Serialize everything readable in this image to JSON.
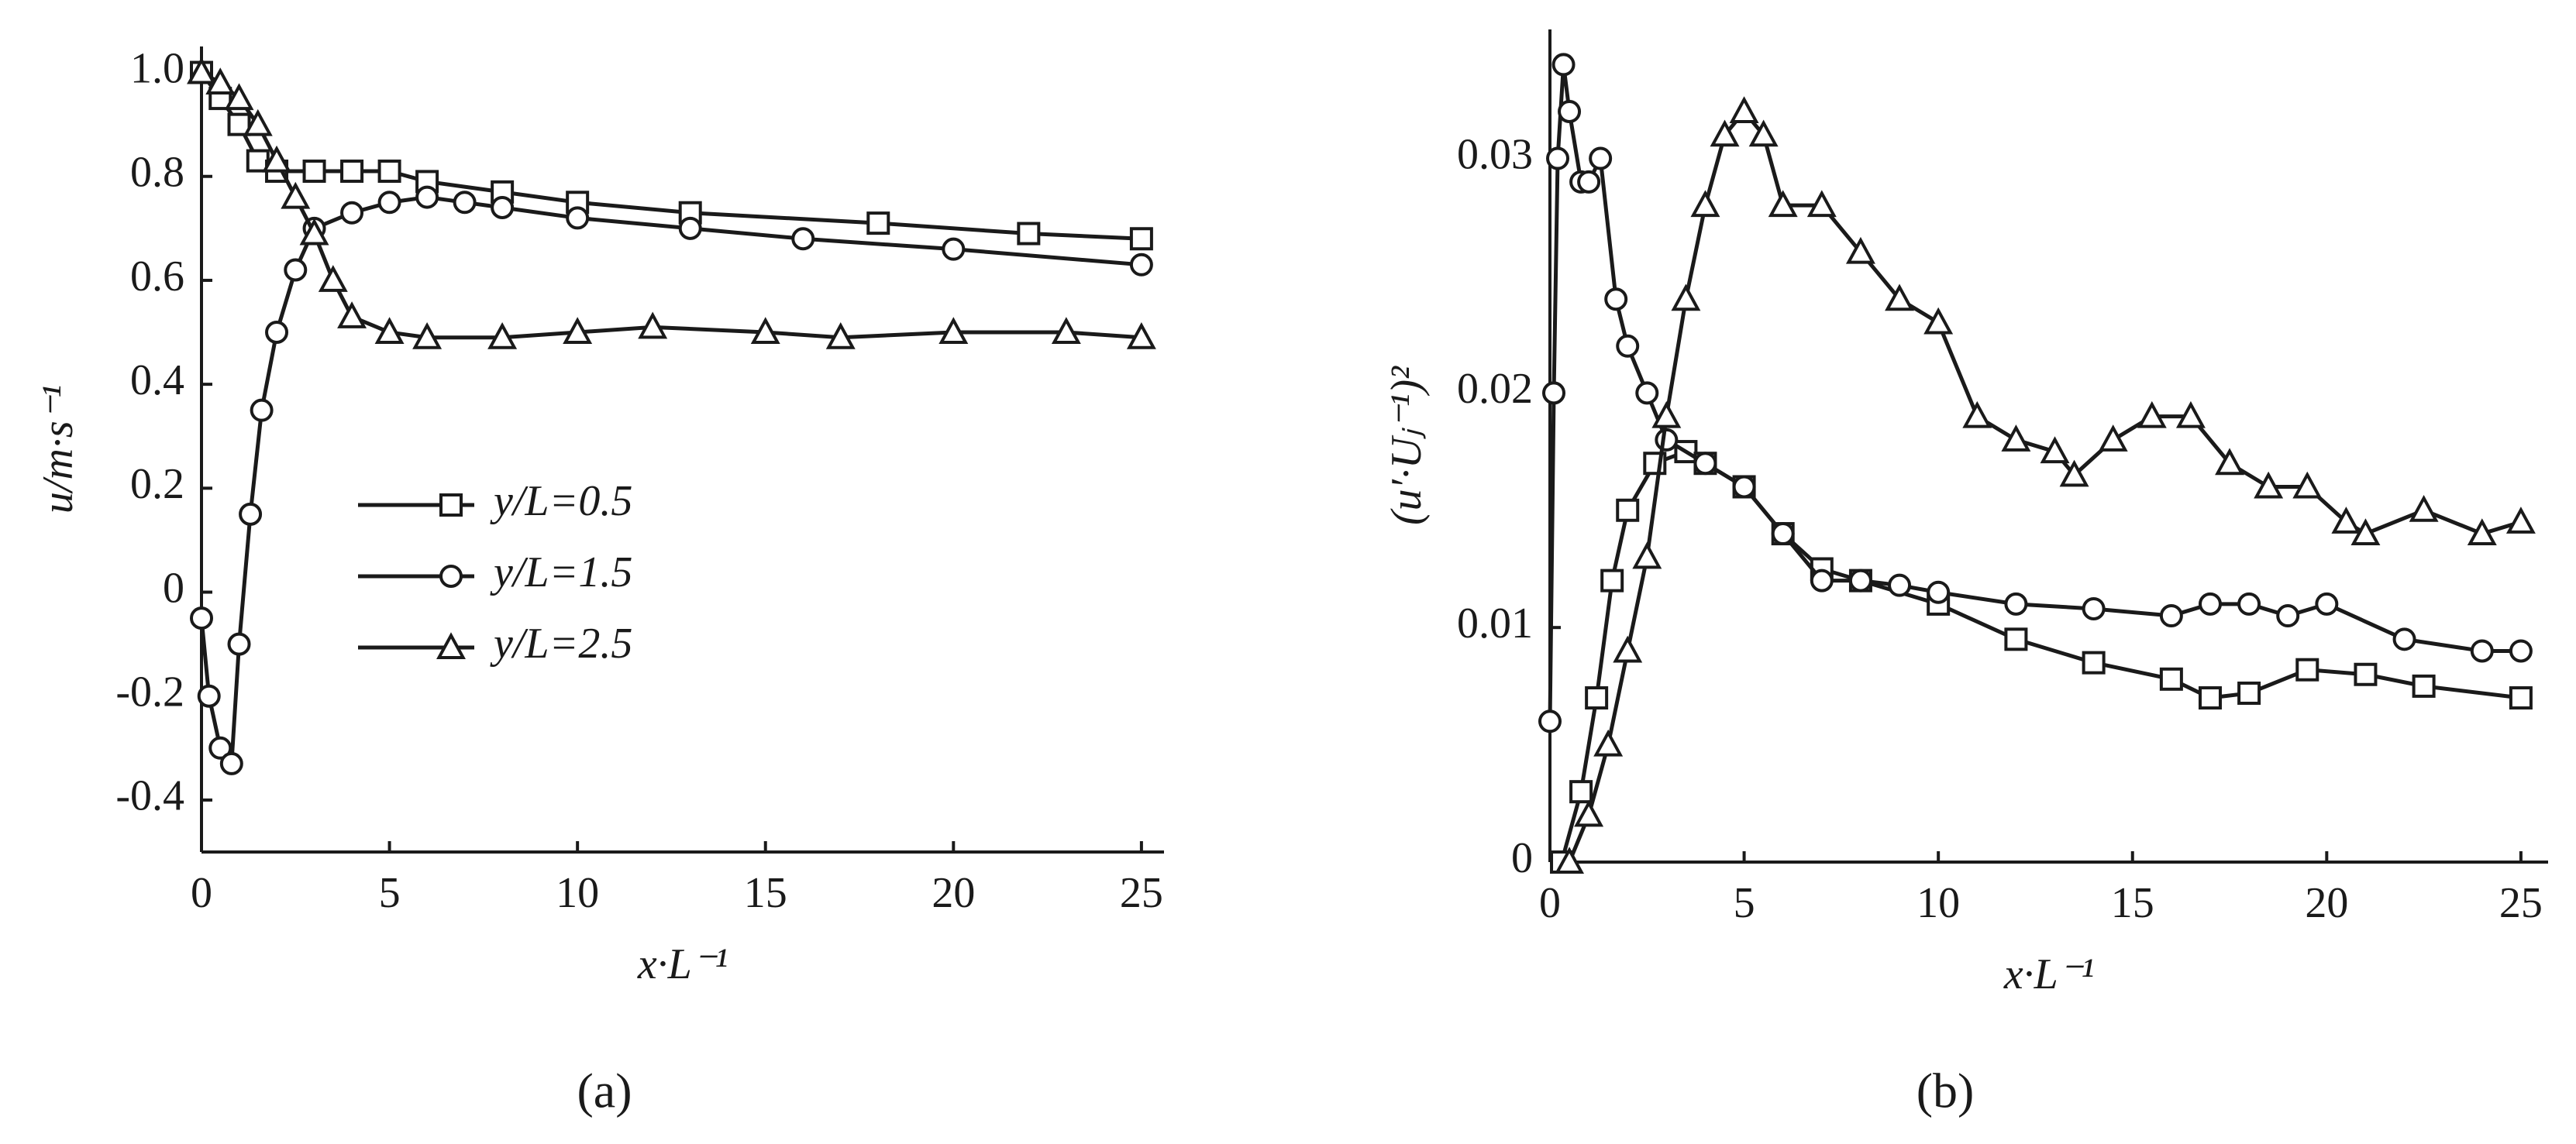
{
  "chart_data": [
    {
      "type": "line",
      "caption": "(a)",
      "x_label": "x·L⁻¹",
      "y_label": "u/m·s⁻¹",
      "xlim": [
        0,
        25.6
      ],
      "ylim": [
        -0.5,
        1.05
      ],
      "xticks": [
        0,
        5,
        10,
        15,
        20,
        25
      ],
      "yticks": [
        {
          "value": 1,
          "label": "1.0"
        },
        0.8,
        0.6,
        0.4,
        0.2,
        0,
        -0.2,
        -0.4
      ],
      "legend": "center-left",
      "color": "#1a1a1a",
      "series": [
        {
          "name": "y/L=0.5",
          "marker": "square",
          "x": [
            0,
            0.5,
            1,
            1.5,
            2,
            3,
            4,
            5,
            6,
            8,
            10,
            13,
            18,
            22,
            25
          ],
          "values": [
            1.0,
            0.95,
            0.9,
            0.83,
            0.81,
            0.81,
            0.81,
            0.81,
            0.79,
            0.77,
            0.75,
            0.73,
            0.71,
            0.69,
            0.68
          ]
        },
        {
          "name": "y/L=1.5",
          "marker": "circle",
          "x": [
            0,
            0.2,
            0.5,
            0.8,
            1,
            1.3,
            1.6,
            2,
            2.5,
            3,
            4,
            5,
            6,
            7,
            8,
            10,
            13,
            16,
            20,
            25
          ],
          "values": [
            -0.05,
            -0.2,
            -0.3,
            -0.33,
            -0.1,
            0.15,
            0.35,
            0.5,
            0.62,
            0.7,
            0.73,
            0.75,
            0.76,
            0.75,
            0.74,
            0.72,
            0.7,
            0.68,
            0.66,
            0.63
          ]
        },
        {
          "name": "y/L=2.5",
          "marker": "triangle",
          "x": [
            0,
            0.5,
            1,
            1.5,
            2,
            2.5,
            3,
            3.5,
            4,
            5,
            6,
            8,
            10,
            12,
            15,
            17,
            20,
            23,
            25
          ],
          "values": [
            1.0,
            0.98,
            0.95,
            0.9,
            0.83,
            0.76,
            0.69,
            0.6,
            0.53,
            0.5,
            0.49,
            0.49,
            0.5,
            0.51,
            0.5,
            0.49,
            0.5,
            0.5,
            0.49
          ]
        }
      ]
    },
    {
      "type": "line",
      "caption": "(b)",
      "x_label": "x·L⁻¹",
      "y_label": "(u′·Uⱼ⁻¹)²",
      "xlim": [
        0,
        25.7
      ],
      "ylim": [
        0,
        0.0355
      ],
      "xticks": [
        0,
        5,
        10,
        15,
        20,
        25
      ],
      "yticks": [
        0,
        0.01,
        0.02,
        0.03
      ],
      "color": "#1a1a1a",
      "series": [
        {
          "marker": "square",
          "x": [
            0.3,
            0.8,
            1.2,
            1.6,
            2,
            2.7,
            3.5,
            4,
            5,
            6,
            7,
            8,
            10,
            12,
            14,
            16,
            17,
            18,
            19.5,
            21,
            22.5,
            25
          ],
          "values": [
            0,
            0.003,
            0.007,
            0.012,
            0.015,
            0.017,
            0.0175,
            0.017,
            0.016,
            0.014,
            0.0125,
            0.012,
            0.011,
            0.0095,
            0.0085,
            0.0078,
            0.007,
            0.0072,
            0.0082,
            0.008,
            0.0075,
            0.007
          ]
        },
        {
          "marker": "circle",
          "x": [
            0,
            0.1,
            0.2,
            0.35,
            0.5,
            0.8,
            1,
            1.3,
            1.7,
            2,
            2.5,
            3,
            4,
            5,
            6,
            7,
            8,
            9,
            10,
            12,
            14,
            16,
            17,
            18,
            19,
            20,
            22,
            24,
            25
          ],
          "values": [
            0.006,
            0.02,
            0.03,
            0.034,
            0.032,
            0.029,
            0.029,
            0.03,
            0.024,
            0.022,
            0.02,
            0.018,
            0.017,
            0.016,
            0.014,
            0.012,
            0.012,
            0.0118,
            0.0115,
            0.011,
            0.0108,
            0.0105,
            0.011,
            0.011,
            0.0105,
            0.011,
            0.0095,
            0.009,
            0.009
          ]
        },
        {
          "marker": "triangle",
          "x": [
            0.5,
            1,
            1.5,
            2,
            2.5,
            3,
            3.5,
            4,
            4.5,
            5,
            5.5,
            6,
            7,
            8,
            9,
            10,
            11,
            12,
            13,
            13.5,
            14.5,
            15.5,
            16.5,
            17.5,
            18.5,
            19.5,
            20.5,
            21,
            22.5,
            24,
            25
          ],
          "values": [
            0,
            0.002,
            0.005,
            0.009,
            0.013,
            0.019,
            0.024,
            0.028,
            0.031,
            0.032,
            0.031,
            0.028,
            0.028,
            0.026,
            0.024,
            0.023,
            0.019,
            0.018,
            0.0175,
            0.0165,
            0.018,
            0.019,
            0.019,
            0.017,
            0.016,
            0.016,
            0.0145,
            0.014,
            0.015,
            0.014,
            0.0145
          ]
        }
      ]
    }
  ]
}
